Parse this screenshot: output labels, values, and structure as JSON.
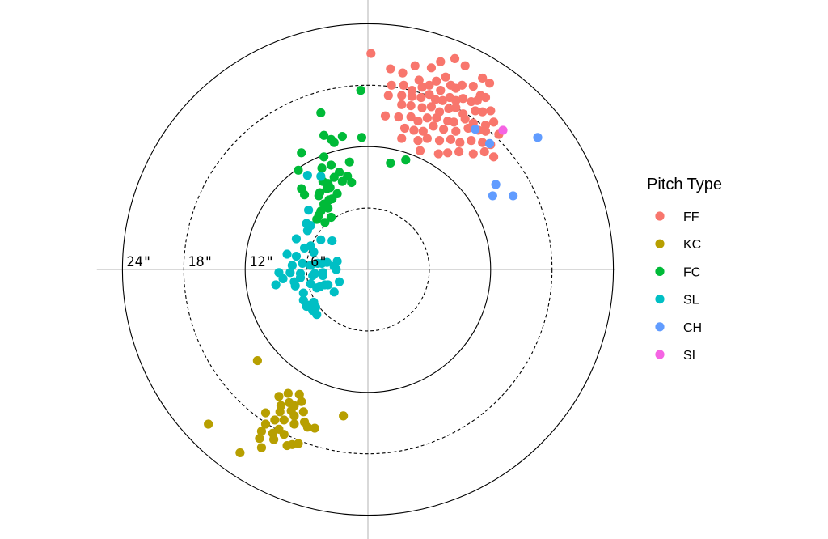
{
  "chart_data": {
    "type": "scatter",
    "coordinate_system": "radial movement plot (inches of break)",
    "x_unit": "inches horizontal",
    "y_unit": "inches vertical",
    "rings": [
      {
        "radius": 6,
        "style": "dashed"
      },
      {
        "radius": 12,
        "style": "solid"
      },
      {
        "radius": 18,
        "style": "dashed"
      },
      {
        "radius": 24,
        "style": "solid"
      }
    ],
    "tick_labels": [
      {
        "radius": 24,
        "text": "24\""
      },
      {
        "radius": 18,
        "text": "18\""
      },
      {
        "radius": 12,
        "text": "12\""
      },
      {
        "radius": 6,
        "text": "6\""
      }
    ],
    "axis_limit": 26.5,
    "grid": true,
    "legend": {
      "title": "Pitch Type",
      "position": "right",
      "entries": [
        "FF",
        "KC",
        "FC",
        "SL",
        "CH",
        "SI"
      ]
    },
    "series": [
      {
        "name": "FF",
        "color": "#F8766D",
        "points": [
          [
            0.3,
            21.1
          ],
          [
            2.2,
            19.6
          ],
          [
            3.4,
            19.2
          ],
          [
            4.6,
            19.9
          ],
          [
            5.0,
            18.5
          ],
          [
            6.2,
            19.7
          ],
          [
            7.1,
            20.3
          ],
          [
            8.5,
            20.6
          ],
          [
            9.5,
            19.9
          ],
          [
            11.2,
            18.7
          ],
          [
            11.9,
            18.2
          ],
          [
            2.3,
            18.0
          ],
          [
            3.5,
            18.0
          ],
          [
            4.3,
            17.5
          ],
          [
            5.3,
            17.8
          ],
          [
            6.0,
            18.0
          ],
          [
            6.7,
            18.4
          ],
          [
            7.1,
            17.5
          ],
          [
            7.6,
            18.8
          ],
          [
            8.1,
            18.0
          ],
          [
            8.6,
            17.7
          ],
          [
            9.2,
            18.0
          ],
          [
            10.3,
            17.9
          ],
          [
            11.0,
            17.0
          ],
          [
            2.0,
            17.0
          ],
          [
            3.3,
            17.0
          ],
          [
            4.3,
            16.9
          ],
          [
            5.2,
            16.8
          ],
          [
            6.0,
            17.1
          ],
          [
            6.6,
            16.6
          ],
          [
            7.3,
            16.5
          ],
          [
            8.0,
            16.8
          ],
          [
            8.6,
            16.5
          ],
          [
            9.3,
            16.7
          ],
          [
            10.1,
            16.4
          ],
          [
            10.7,
            16.5
          ],
          [
            11.5,
            16.8
          ],
          [
            3.3,
            16.1
          ],
          [
            4.2,
            16.0
          ],
          [
            5.3,
            15.8
          ],
          [
            6.2,
            15.9
          ],
          [
            7.0,
            15.4
          ],
          [
            7.9,
            15.7
          ],
          [
            8.6,
            15.8
          ],
          [
            9.3,
            15.2
          ],
          [
            10.5,
            15.5
          ],
          [
            11.2,
            15.4
          ],
          [
            12.0,
            15.5
          ],
          [
            1.7,
            15.0
          ],
          [
            3.0,
            14.9
          ],
          [
            4.2,
            14.9
          ],
          [
            4.9,
            14.5
          ],
          [
            5.8,
            14.8
          ],
          [
            6.7,
            14.8
          ],
          [
            7.8,
            14.5
          ],
          [
            8.4,
            14.4
          ],
          [
            9.5,
            14.7
          ],
          [
            10.3,
            14.3
          ],
          [
            11.5,
            14.1
          ],
          [
            12.3,
            14.4
          ],
          [
            3.6,
            13.8
          ],
          [
            4.5,
            13.6
          ],
          [
            5.4,
            13.5
          ],
          [
            6.4,
            14.0
          ],
          [
            7.4,
            13.7
          ],
          [
            8.6,
            13.5
          ],
          [
            9.8,
            13.8
          ],
          [
            10.8,
            13.6
          ],
          [
            11.5,
            13.5
          ],
          [
            12.8,
            13.2
          ],
          [
            3.3,
            12.8
          ],
          [
            4.9,
            12.6
          ],
          [
            5.8,
            12.8
          ],
          [
            7.0,
            12.6
          ],
          [
            8.1,
            12.7
          ],
          [
            9.0,
            12.4
          ],
          [
            10.1,
            12.6
          ],
          [
            11.2,
            12.4
          ],
          [
            12.0,
            12.2
          ],
          [
            5.1,
            11.6
          ],
          [
            6.9,
            11.3
          ],
          [
            7.8,
            11.4
          ],
          [
            8.9,
            11.5
          ],
          [
            10.3,
            11.3
          ],
          [
            11.4,
            11.5
          ],
          [
            12.3,
            11.0
          ]
        ]
      },
      {
        "name": "KC",
        "color": "#B79F00",
        "points": [
          [
            -10.8,
            -8.9
          ],
          [
            -15.6,
            -15.1
          ],
          [
            -12.5,
            -17.9
          ],
          [
            -7.8,
            -12.1
          ],
          [
            -8.7,
            -12.4
          ],
          [
            -6.7,
            -12.2
          ],
          [
            -7.7,
            -13.0
          ],
          [
            -8.5,
            -13.3
          ],
          [
            -6.5,
            -12.9
          ],
          [
            -7.2,
            -13.3
          ],
          [
            -7.5,
            -13.8
          ],
          [
            -8.6,
            -13.9
          ],
          [
            -10.0,
            -14.0
          ],
          [
            -7.2,
            -14.3
          ],
          [
            -6.3,
            -13.9
          ],
          [
            -8.2,
            -14.7
          ],
          [
            -9.1,
            -14.7
          ],
          [
            -7.2,
            -15.1
          ],
          [
            -6.2,
            -14.9
          ],
          [
            -5.9,
            -15.4
          ],
          [
            -8.7,
            -15.6
          ],
          [
            -10.0,
            -15.1
          ],
          [
            -9.3,
            -16.0
          ],
          [
            -10.4,
            -15.8
          ],
          [
            -10.6,
            -16.5
          ],
          [
            -9.2,
            -16.6
          ],
          [
            -8.2,
            -16.1
          ],
          [
            -7.9,
            -17.2
          ],
          [
            -7.4,
            -17.1
          ],
          [
            -10.4,
            -17.4
          ],
          [
            -6.8,
            -17.0
          ],
          [
            -5.2,
            -15.5
          ],
          [
            -2.4,
            -14.3
          ]
        ]
      },
      {
        "name": "FC",
        "color": "#00BA38",
        "points": [
          [
            -0.7,
            17.5
          ],
          [
            -4.6,
            15.3
          ],
          [
            -4.3,
            13.1
          ],
          [
            -3.6,
            12.7
          ],
          [
            -3.3,
            12.4
          ],
          [
            -2.5,
            13.0
          ],
          [
            -0.6,
            12.9
          ],
          [
            -6.5,
            11.4
          ],
          [
            -4.3,
            11.0
          ],
          [
            -1.8,
            10.5
          ],
          [
            2.2,
            10.4
          ],
          [
            3.7,
            10.7
          ],
          [
            -3.6,
            10.2
          ],
          [
            -4.5,
            9.9
          ],
          [
            -6.8,
            9.7
          ],
          [
            -2.8,
            9.5
          ],
          [
            -2.0,
            9.1
          ],
          [
            -3.3,
            9.0
          ],
          [
            -4.4,
            8.6
          ],
          [
            -3.9,
            8.4
          ],
          [
            -2.5,
            8.6
          ],
          [
            -1.6,
            8.5
          ],
          [
            -4.0,
            7.9
          ],
          [
            -3.0,
            7.4
          ],
          [
            -6.5,
            7.9
          ],
          [
            -6.2,
            7.3
          ],
          [
            -4.7,
            7.5
          ],
          [
            -3.5,
            6.9
          ],
          [
            -4.3,
            6.4
          ],
          [
            -3.9,
            6.0
          ],
          [
            -4.6,
            5.7
          ],
          [
            -3.6,
            5.1
          ],
          [
            -4.8,
            5.3
          ],
          [
            -4.2,
            4.6
          ],
          [
            -4.8,
            7.2
          ],
          [
            -3.8,
            6.8
          ],
          [
            -5.0,
            4.9
          ],
          [
            -3.7,
            8.0
          ]
        ]
      },
      {
        "name": "SL",
        "color": "#00BFC4",
        "points": [
          [
            -5.9,
            9.2
          ],
          [
            -4.6,
            9.1
          ],
          [
            -5.8,
            5.8
          ],
          [
            -6.0,
            4.5
          ],
          [
            -5.6,
            4.3
          ],
          [
            -5.9,
            3.8
          ],
          [
            -7.0,
            3.0
          ],
          [
            -5.6,
            2.3
          ],
          [
            -6.2,
            2.1
          ],
          [
            -4.6,
            2.9
          ],
          [
            -3.5,
            2.8
          ],
          [
            -5.3,
            1.7
          ],
          [
            -7.9,
            1.5
          ],
          [
            -7.0,
            1.3
          ],
          [
            -6.4,
            0.6
          ],
          [
            -4.9,
            0.6
          ],
          [
            -4.5,
            0.6
          ],
          [
            -4.0,
            0.7
          ],
          [
            -3.0,
            0.8
          ],
          [
            -7.4,
            0.4
          ],
          [
            -5.6,
            0.4
          ],
          [
            -3.3,
            0.3
          ],
          [
            -8.7,
            -0.3
          ],
          [
            -7.6,
            -0.3
          ],
          [
            -6.6,
            -0.4
          ],
          [
            -5.2,
            -0.4
          ],
          [
            -4.4,
            -0.3
          ],
          [
            -3.1,
            0.0
          ],
          [
            -6.6,
            -0.8
          ],
          [
            -5.4,
            -0.6
          ],
          [
            -4.4,
            -0.6
          ],
          [
            -8.3,
            -0.9
          ],
          [
            -7.2,
            -1.2
          ],
          [
            -5.6,
            -1.4
          ],
          [
            -4.2,
            -1.5
          ],
          [
            -3.9,
            -1.5
          ],
          [
            -2.8,
            -1.2
          ],
          [
            -9.0,
            -1.5
          ],
          [
            -7.1,
            -1.6
          ],
          [
            -5.0,
            -1.8
          ],
          [
            -4.7,
            -1.7
          ],
          [
            -6.3,
            -2.3
          ],
          [
            -3.3,
            -2.2
          ],
          [
            -6.3,
            -3.0
          ],
          [
            -5.3,
            -3.2
          ],
          [
            -5.1,
            -3.7
          ],
          [
            -5.4,
            -4.0
          ],
          [
            -5.0,
            -4.4
          ],
          [
            -6.0,
            -3.6
          ],
          [
            -5.8,
            -3.5
          ]
        ]
      },
      {
        "name": "CH",
        "color": "#619CFF",
        "points": [
          [
            10.5,
            13.7
          ],
          [
            11.9,
            12.3
          ],
          [
            16.6,
            12.9
          ],
          [
            12.5,
            8.3
          ],
          [
            12.2,
            7.2
          ],
          [
            14.2,
            7.2
          ]
        ]
      },
      {
        "name": "SI",
        "color": "#F564E3",
        "points": [
          [
            13.2,
            13.6
          ]
        ]
      }
    ]
  }
}
